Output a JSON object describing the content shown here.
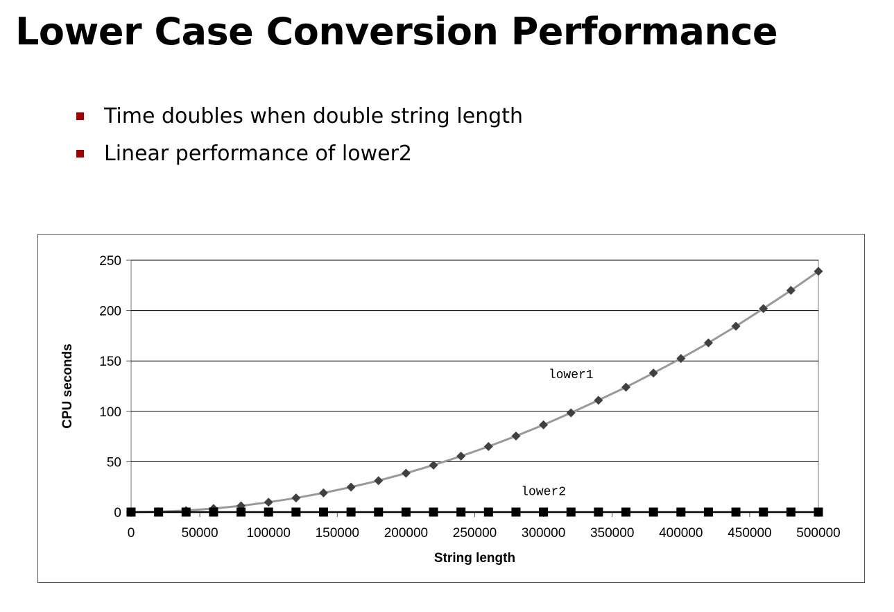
{
  "slide": {
    "title": "Lower Case Conversion Performance",
    "bullet_color": "#a00000",
    "bullets": [
      "Time doubles when double string length",
      "Linear performance of lower2"
    ]
  },
  "chart_data": {
    "type": "line",
    "title": "",
    "xlabel": "String length",
    "ylabel": "CPU seconds",
    "xlim": [
      0,
      500000
    ],
    "ylim": [
      0,
      250
    ],
    "x_ticks": [
      0,
      50000,
      100000,
      150000,
      200000,
      250000,
      300000,
      350000,
      400000,
      450000,
      500000
    ],
    "y_ticks": [
      0,
      50,
      100,
      150,
      200,
      250
    ],
    "grid": "horizontal",
    "legend": "none",
    "x": [
      0,
      20000,
      40000,
      60000,
      80000,
      100000,
      120000,
      140000,
      160000,
      180000,
      200000,
      220000,
      240000,
      260000,
      280000,
      300000,
      320000,
      340000,
      360000,
      380000,
      400000,
      420000,
      440000,
      460000,
      480000,
      500000
    ],
    "series": [
      {
        "name": "lower1",
        "marker": "diamond",
        "line_color": "#999999",
        "marker_color": "#404040",
        "values": [
          0,
          0.4,
          1.5,
          3.5,
          6.2,
          9.8,
          14.0,
          19.0,
          24.8,
          31.2,
          38.6,
          46.6,
          55.5,
          65.1,
          75.5,
          86.6,
          98.5,
          111.0,
          124.0,
          138.0,
          152.5,
          168.0,
          184.5,
          202.0,
          220.0,
          239.0
        ]
      },
      {
        "name": "lower2",
        "marker": "square",
        "line_color": "#000000",
        "marker_color": "#000000",
        "values": [
          0,
          0,
          0,
          0,
          0,
          0,
          0,
          0,
          0,
          0,
          0,
          0,
          0,
          0,
          0,
          0,
          0,
          0,
          0,
          0,
          0,
          0,
          0,
          0,
          0,
          0
        ]
      }
    ],
    "annotations": [
      {
        "text": "lower1",
        "x": 320000,
        "y": 133
      },
      {
        "text": "lower2",
        "x": 300000,
        "y": 17
      }
    ]
  }
}
